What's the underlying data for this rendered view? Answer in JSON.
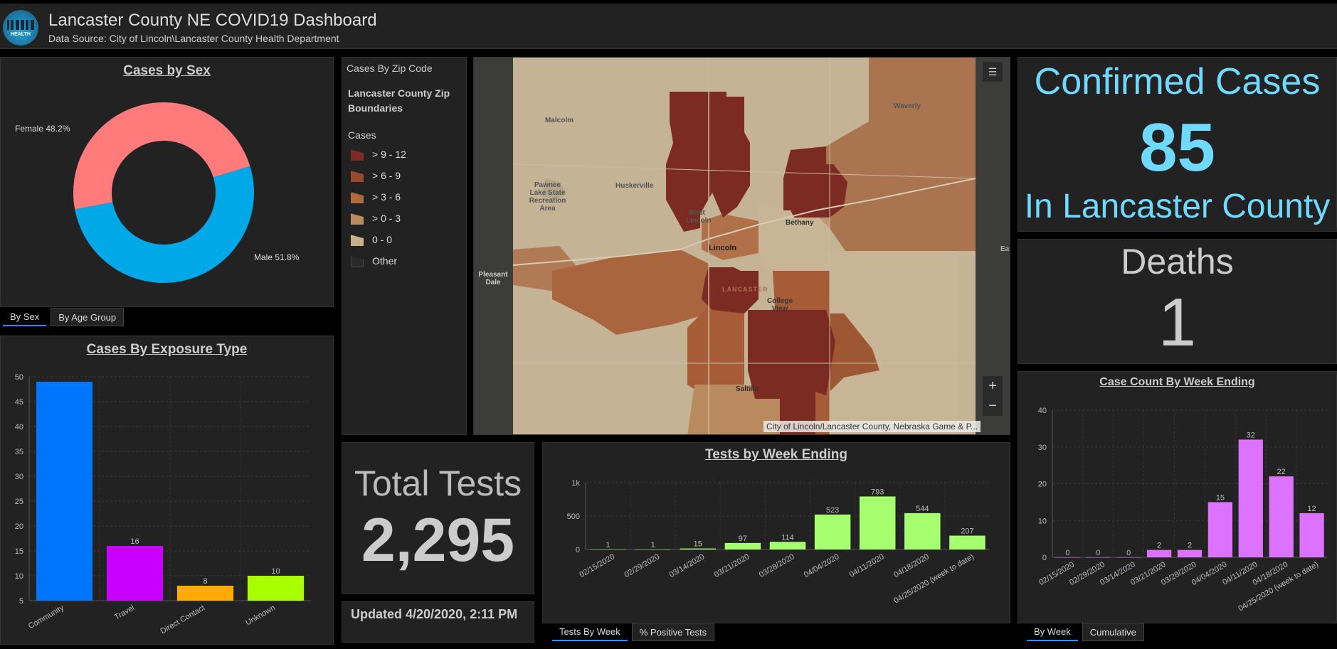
{
  "header": {
    "title": "Lancaster County NE COVID19 Dashboard",
    "subtitle": "Data Source: City of Lincoln\\Lancaster County Health Department",
    "logo_text": "HEALTH"
  },
  "sex_panel": {
    "title": "Cases by Sex",
    "female_label": "Female 48.2%",
    "male_label": "Male 51.8%",
    "tabs": [
      "By Sex",
      "By Age Group"
    ]
  },
  "exposure_panel": {
    "title": "Cases By Exposure Type"
  },
  "zip_legend": {
    "header": "Cases By Zip Code",
    "layer": "Lancaster County Zip Boundaries",
    "field": "Cases",
    "items": [
      {
        "label": "> 9 - 12",
        "color": "#7b2b22"
      },
      {
        "label": "> 6 - 9",
        "color": "#9a4a2c"
      },
      {
        "label": "> 3 - 6",
        "color": "#b06a3e"
      },
      {
        "label": "> 0 - 3",
        "color": "#b98a5e"
      },
      {
        "label": "0 - 0",
        "color": "#c8b089"
      },
      {
        "label": "Other",
        "color": "#2a2a2a"
      }
    ]
  },
  "map": {
    "labels": [
      "Malcolm",
      "Waverly",
      "Pawnee Lake State Recreation Area",
      "Huskerville",
      "West Lincoln",
      "Bethany",
      "Lincoln",
      "LANCASTER",
      "College View",
      "Pleasant Dale",
      "Saltillo",
      "Ea"
    ],
    "attribution": "City of Lincoln/Lancaster County, Nebraska Game & P...",
    "zoom_in": "+",
    "zoom_out": "−"
  },
  "confirmed": {
    "line1": "Confirmed Cases",
    "value": "85",
    "line2": "In Lancaster County"
  },
  "deaths": {
    "label": "Deaths",
    "value": "1"
  },
  "total_tests": {
    "label": "Total Tests",
    "value": "2,295"
  },
  "updated": {
    "text": "Updated 4/20/2020, 2:11 PM"
  },
  "tests_panel": {
    "title": "Tests by Week Ending",
    "tabs": [
      "Tests By Week",
      "% Positive Tests"
    ]
  },
  "week_panel": {
    "title": "Case Count By Week Ending",
    "tabs": [
      "By Week",
      "Cumulative"
    ]
  },
  "colors": {
    "female": "#ff7b7b",
    "male": "#00a8e8",
    "tests_bar": "#a6ff6f",
    "week_bar": "#dd72ff",
    "big_cyan": "#6fd9ff"
  },
  "chart_data": [
    {
      "type": "pie",
      "categories": [
        "Female",
        "Male"
      ],
      "values": [
        48.2,
        51.8
      ],
      "colors": [
        "#ff7b7b",
        "#00a8e8"
      ],
      "title": "Cases by Sex"
    },
    {
      "type": "bar",
      "title": "Cases By Exposure Type",
      "categories": [
        "Community",
        "Travel",
        "Direct Contact",
        "Unknown"
      ],
      "values": [
        49,
        16,
        8,
        10
      ],
      "data_labels": [
        "",
        "16",
        "8",
        "10"
      ],
      "colors": [
        "#0076ff",
        "#c800ff",
        "#ffaa00",
        "#a8ff00"
      ],
      "ylim": [
        5,
        50
      ],
      "yticks": [
        5,
        10,
        15,
        20,
        25,
        30,
        35,
        40,
        45,
        50
      ],
      "grid": true
    },
    {
      "type": "bar",
      "title": "Tests by Week Ending",
      "categories": [
        "02/15/2020",
        "02/29/2020",
        "03/14/2020",
        "03/21/2020",
        "03/28/2020",
        "04/04/2020",
        "04/11/2020",
        "04/18/2020",
        "04/25/2020 (week to date)"
      ],
      "values": [
        1,
        1,
        15,
        97,
        114,
        523,
        793,
        544,
        207
      ],
      "ylim": [
        0,
        1000
      ],
      "yticks": [
        0,
        500,
        1000
      ],
      "ytick_labels": [
        "0",
        "500",
        "1k"
      ],
      "grid": true
    },
    {
      "type": "bar",
      "title": "Case Count By Week Ending",
      "categories": [
        "02/15/2020",
        "02/29/2020",
        "03/14/2020",
        "03/21/2020",
        "03/28/2020",
        "04/04/2020",
        "04/11/2020",
        "04/18/2020",
        "04/25/2020 (week to date)"
      ],
      "values": [
        0,
        0,
        0,
        2,
        2,
        15,
        32,
        22,
        12
      ],
      "ylim": [
        0,
        40
      ],
      "yticks": [
        0,
        10,
        20,
        30,
        40
      ],
      "grid": true
    }
  ]
}
